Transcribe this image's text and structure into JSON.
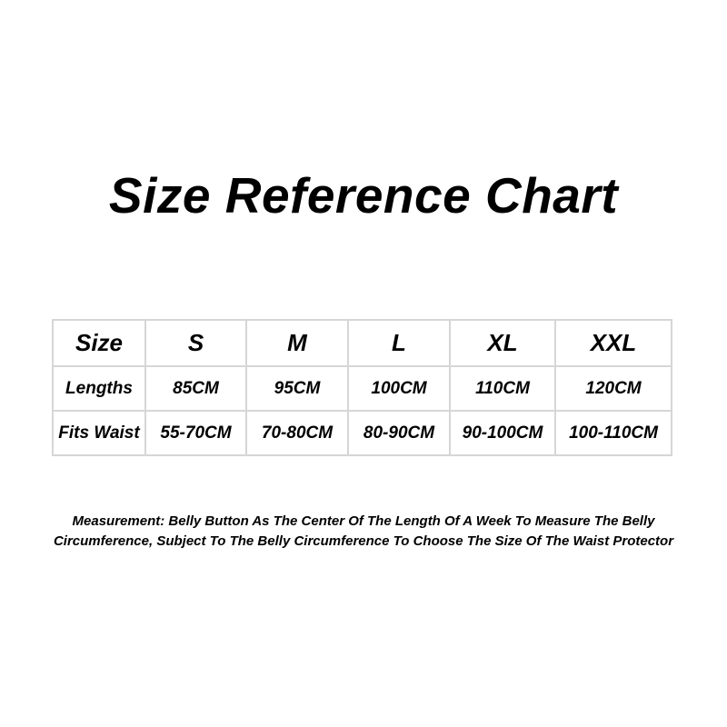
{
  "title": "Size Reference Chart",
  "table": {
    "rows": [
      [
        "Size",
        "S",
        "M",
        "L",
        "XL",
        "XXL"
      ],
      [
        "Lengths",
        "85CM",
        "95CM",
        "100CM",
        "110CM",
        "120CM"
      ],
      [
        "Fits Waist",
        "55-70CM",
        "70-80CM",
        "80-90CM",
        "90-100CM",
        "100-110CM"
      ]
    ]
  },
  "note": {
    "line1": "Measurement: Belly Button As The Center Of The Length Of A Week To Measure The Belly",
    "line2": "Circumference, Subject To The Belly Circumference To Choose The Size Of The Waist Protector"
  }
}
